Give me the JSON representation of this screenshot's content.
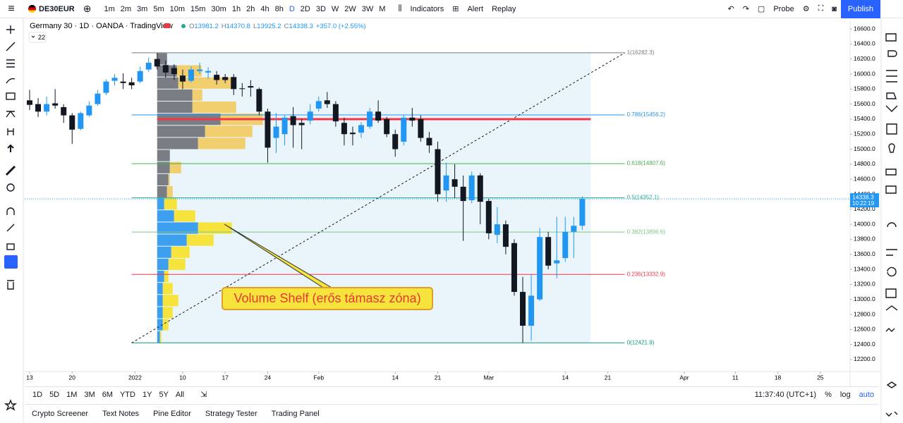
{
  "top_toolbar": {
    "symbol": "DE30EUR",
    "intervals": [
      "1m",
      "2m",
      "3m",
      "5m",
      "10m",
      "15m",
      "30m",
      "1h",
      "2h",
      "4h",
      "8h",
      "D",
      "2D",
      "3D",
      "W",
      "2W",
      "3W",
      "M"
    ],
    "indicators": "Indicators",
    "alert": "Alert",
    "replay": "Replay",
    "probe": "Probe",
    "publish": "Publish"
  },
  "legend": {
    "title": "Germany 30 · 1D · OANDA · TradingView",
    "ohlc": [
      {
        "label": "O",
        "value": "13981.2"
      },
      {
        "label": "H",
        "value": "14370.8"
      },
      {
        "label": "L",
        "value": "13925.2"
      },
      {
        "label": "C",
        "value": "14338.3"
      }
    ],
    "change": "+357.0 (+2.55%)",
    "indicator_count": "22"
  },
  "chart_data": {
    "type": "candlestick",
    "open": [
      15650,
      15600,
      15500,
      15610,
      15560,
      15450,
      15270,
      15450,
      15600,
      15750,
      15910,
      15900,
      15890,
      15900,
      16060,
      16200,
      16120,
      16080,
      15980,
      15910,
      16040,
      16020,
      15990,
      15960,
      15960,
      15810,
      15840,
      15800,
      15500,
      15150,
      15200,
      15440,
      15350,
      15380,
      15540,
      15650,
      15600,
      15350,
      15220,
      15220,
      15300,
      15500,
      15400,
      15200,
      15100,
      15420,
      15400,
      15150,
      15000,
      14450,
      14600,
      14500,
      14320,
      14650,
      14310,
      13860,
      14000,
      13750,
      13100,
      12650,
      13000,
      13830,
      13480,
      13550,
      13900,
      13981.2
    ],
    "high": [
      15790,
      15680,
      15700,
      15800,
      15600,
      15480,
      15500,
      15640,
      15790,
      15930,
      16000,
      16010,
      15950,
      16100,
      16220,
      16282.3,
      16180,
      16130,
      16060,
      16100,
      16150,
      16090,
      16040,
      16000,
      16000,
      15880,
      15920,
      15820,
      15540,
      15480,
      15450,
      15560,
      15400,
      15600,
      15700,
      15760,
      15640,
      15420,
      15300,
      15360,
      15550,
      15650,
      15430,
      15260,
      15450,
      15550,
      15450,
      15230,
      15100,
      14820,
      14800,
      14650,
      14700,
      14680,
      14340,
      14230,
      14050,
      13800,
      13300,
      13330,
      13950,
      13900,
      14100,
      14100,
      14100,
      14370.8
    ],
    "low": [
      15520,
      15430,
      15450,
      15540,
      15350,
      15070,
      15250,
      15430,
      15580,
      15720,
      15850,
      15800,
      15800,
      15880,
      16030,
      16060,
      15950,
      15920,
      15800,
      15890,
      16000,
      15940,
      15860,
      15880,
      15720,
      15700,
      15700,
      15450,
      14820,
      14950,
      15050,
      15020,
      15000,
      15330,
      15500,
      15550,
      15300,
      15050,
      15050,
      15150,
      15270,
      15350,
      15160,
      14900,
      15050,
      15300,
      15100,
      14950,
      14300,
      14300,
      14350,
      13780,
      14280,
      14000,
      13800,
      13750,
      13600,
      13050,
      12421.9,
      12450,
      12980,
      13400,
      13280,
      13500,
      13550,
      13925.2
    ],
    "close": [
      15590,
      15500,
      15600,
      15580,
      15450,
      15260,
      15480,
      15580,
      15740,
      15900,
      15950,
      15880,
      15850,
      16040,
      16150,
      16100,
      16020,
      16000,
      15900,
      16060,
      16060,
      16040,
      15920,
      15920,
      15800,
      15800,
      15820,
      15500,
      15020,
      15300,
      15420,
      15320,
      15320,
      15500,
      15640,
      15600,
      15370,
      15200,
      15200,
      15320,
      15500,
      15380,
      15200,
      15000,
      15420,
      15380,
      15150,
      15050,
      14400,
      14650,
      14500,
      14310,
      14650,
      14300,
      13880,
      14000,
      13700,
      13100,
      12650,
      13050,
      13830,
      13450,
      13520,
      13900,
      13980,
      14338.3
    ],
    "colors": {
      "up": "#2196f3",
      "down": "#131722"
    },
    "xlim": [
      -0.58,
      96.5
    ],
    "ylim": [
      12040,
      16704
    ],
    "xticks": [
      {
        "value": 0,
        "label": "13"
      },
      {
        "value": 5,
        "label": "20"
      },
      {
        "value": 12.4,
        "label": "2022"
      },
      {
        "value": 18,
        "label": "10"
      },
      {
        "value": 23,
        "label": "17"
      },
      {
        "value": 28,
        "label": "24"
      },
      {
        "value": 34,
        "label": "Feb"
      },
      {
        "value": 43,
        "label": "14"
      },
      {
        "value": 48,
        "label": "21"
      },
      {
        "value": 54,
        "label": "Mar"
      },
      {
        "value": 63,
        "label": "14"
      },
      {
        "value": 68,
        "label": "21"
      },
      {
        "value": 77,
        "label": "Apr"
      },
      {
        "value": 83,
        "label": "11"
      },
      {
        "value": 88,
        "label": "18"
      },
      {
        "value": 93,
        "label": "25"
      }
    ],
    "yticks": [
      {
        "value": 16600,
        "label": "16600.0"
      },
      {
        "value": 16400,
        "label": "16400.0"
      },
      {
        "value": 16200,
        "label": "16200.0"
      },
      {
        "value": 16000,
        "label": "16000.0"
      },
      {
        "value": 15800,
        "label": "15800.0"
      },
      {
        "value": 15600,
        "label": "15600.0"
      },
      {
        "value": 15400,
        "label": "15400.0"
      },
      {
        "value": 15200,
        "label": "15200.0"
      },
      {
        "value": 15000,
        "label": "15000.0"
      },
      {
        "value": 14800,
        "label": "14800.0"
      },
      {
        "value": 14600,
        "label": "14600.0"
      },
      {
        "value": 14400,
        "label": "14400.0"
      },
      {
        "value": 14200,
        "label": "14200.0"
      },
      {
        "value": 14000,
        "label": "14000.0"
      },
      {
        "value": 13800,
        "label": "13800.0"
      },
      {
        "value": 13600,
        "label": "13600.0"
      },
      {
        "value": 13400,
        "label": "13400.0"
      },
      {
        "value": 13200,
        "label": "13200.0"
      },
      {
        "value": 13000,
        "label": "13000.0"
      },
      {
        "value": 12800,
        "label": "12800.0"
      },
      {
        "value": 12600,
        "label": "12600.0"
      },
      {
        "value": 12400,
        "label": "12400.0"
      },
      {
        "value": 12200,
        "label": "12200.0"
      }
    ],
    "last_price": {
      "value": 14338.3,
      "countdown": "10:22:19",
      "color": "#2196f3"
    },
    "fib": {
      "start": 12,
      "end": 70,
      "levels": [
        {
          "value": 16282.3,
          "label": "1(16282.3)",
          "color": "#787b86"
        },
        {
          "value": 15456.2,
          "label": "0.786(15456.2)",
          "color": "#2196f3"
        },
        {
          "value": 14807.6,
          "label": "0.618(14807.6)",
          "color": "#4caf50"
        },
        {
          "value": 14352.1,
          "label": "0.5(14352.1)",
          "color": "#22ab94"
        },
        {
          "value": 13896.6,
          "label": "0.382(13896.6)",
          "color": "#81c784"
        },
        {
          "value": 13332.9,
          "label": "0.236(13332.9)",
          "color": "#f23645"
        },
        {
          "value": 12421.9,
          "label": "0(12421.9)",
          "color": "#089981"
        }
      ]
    },
    "trend_line": {
      "x": [
        12,
        70
      ],
      "y": [
        12421.9,
        16282.3
      ]
    },
    "poc_line": {
      "value": 15400,
      "start": 15,
      "end": 66,
      "color": "#f23645"
    },
    "range_box": {
      "start": 15,
      "end": 66,
      "top": 16282.3,
      "bottom": 12421.9,
      "color": "#e9f5fb"
    },
    "volume_profile": {
      "bins": [
        16282.3,
        16121.5,
        15960.6,
        15799.8,
        15638.9,
        15478.1,
        15317.2,
        15156.4,
        14995.5,
        14834.7,
        14673.8,
        14513,
        14352.1,
        14191.3,
        14030.4,
        13869.6,
        13708.7,
        13547.9,
        13387,
        13226.2,
        13065.3,
        12904.5,
        12743.6,
        12582.8,
        12421.9
      ],
      "values": [
        [
          14,
          0
        ],
        [
          28,
          35
        ],
        [
          30,
          82
        ],
        [
          50,
          14
        ],
        [
          50,
          62
        ],
        [
          90,
          60
        ],
        [
          68,
          67
        ],
        [
          58,
          67
        ],
        [
          18,
          0
        ],
        [
          18,
          16
        ],
        [
          16,
          2
        ],
        [
          14,
          8
        ],
        [
          10,
          18
        ],
        [
          24,
          30
        ],
        [
          58,
          48
        ],
        [
          42,
          38
        ],
        [
          20,
          26
        ],
        [
          16,
          24
        ],
        [
          10,
          6
        ],
        [
          8,
          14
        ],
        [
          8,
          22
        ],
        [
          8,
          14
        ],
        [
          8,
          8
        ],
        [
          4,
          2
        ]
      ],
      "colors": [
        [
          "#7b7d85",
          "#f2cf6e"
        ],
        [
          "#7b7d85",
          "#f2cf6e"
        ],
        [
          "#7b7d85",
          "#f2cf6e"
        ],
        [
          "#7b7d85",
          "#f2cf6e"
        ],
        [
          "#7b7d85",
          "#f2cf6e"
        ],
        [
          "#7b7d85",
          "#f2cf6e"
        ],
        [
          "#7b7d85",
          "#f2cf6e"
        ],
        [
          "#7b7d85",
          "#f2cf6e"
        ],
        [
          "#7b7d85",
          "#f2cf6e"
        ],
        [
          "#7b7d85",
          "#f2cf6e"
        ],
        [
          "#7b7d85",
          "#f2cf6e"
        ],
        [
          "#7b7d85",
          "#f2cf6e"
        ],
        [
          "#3d9ff0",
          "#f6e43c"
        ],
        [
          "#3d9ff0",
          "#f6e43c"
        ],
        [
          "#3d9ff0",
          "#f6e43c"
        ],
        [
          "#3d9ff0",
          "#f6e43c"
        ],
        [
          "#3d9ff0",
          "#f6e43c"
        ],
        [
          "#3d9ff0",
          "#f6e43c"
        ],
        [
          "#3d9ff0",
          "#f6e43c"
        ],
        [
          "#3d9ff0",
          "#f6e43c"
        ],
        [
          "#3d9ff0",
          "#f6e43c"
        ],
        [
          "#3d9ff0",
          "#f6e43c"
        ],
        [
          "#3d9ff0",
          "#f6e43c"
        ],
        [
          "#3d9ff0",
          "#f6e43c"
        ]
      ]
    },
    "annotation": {
      "text": "Volume Shelf (erős támasz zóna)"
    }
  },
  "bottom_toolbar": {
    "ranges": [
      "1D",
      "5D",
      "1M",
      "3M",
      "6M",
      "YTD",
      "1Y",
      "5Y",
      "All"
    ],
    "time": "11:37:40 (UTC+1)",
    "percent": "%",
    "log": "log",
    "auto": "auto"
  },
  "panel_tabs": [
    "Crypto Screener",
    "Text Notes",
    "Pine Editor",
    "Strategy Tester",
    "Trading Panel"
  ]
}
